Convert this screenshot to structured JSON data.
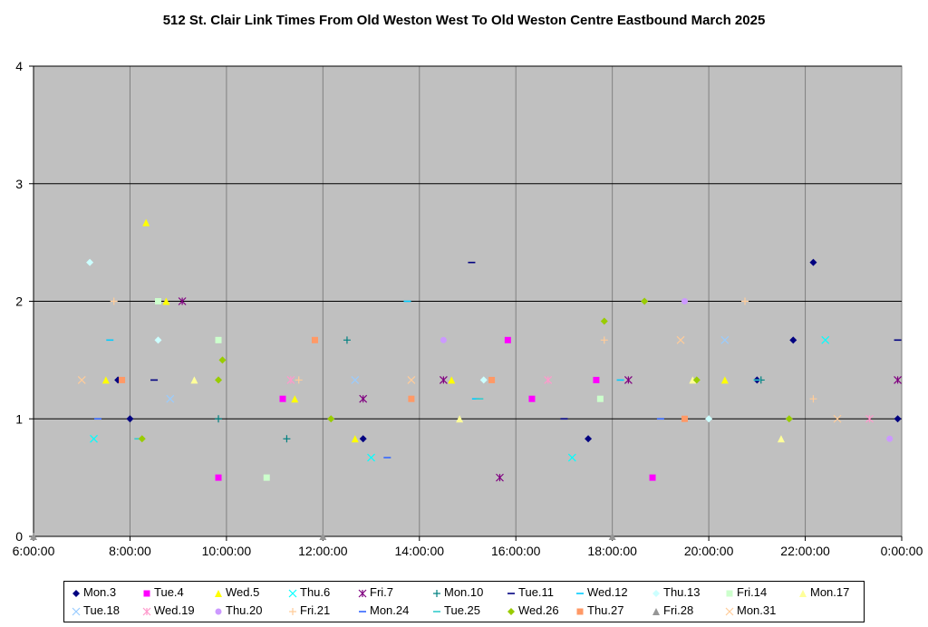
{
  "chart_data": {
    "type": "scatter",
    "title": "512 St. Clair Link Times From Old Weston West To Old Weston Centre Eastbound March 2025",
    "xlabel": "",
    "ylabel": "",
    "xlim": [
      "6:00:00",
      "0:00:00"
    ],
    "ylim": [
      0,
      4
    ],
    "x_ticks": [
      "6:00:00",
      "8:00:00",
      "10:00:00",
      "12:00:00",
      "14:00:00",
      "16:00:00",
      "18:00:00",
      "20:00:00",
      "22:00:00",
      "0:00:00"
    ],
    "y_ticks": [
      "0",
      "1",
      "2",
      "3",
      "4"
    ],
    "grid": true,
    "legend_position": "bottom",
    "plot_background": "#c0c0c0",
    "series": [
      {
        "name": "Mon.3",
        "color": "#000080",
        "marker": "diamond",
        "points": [
          [
            "7:45:00",
            1.33
          ],
          [
            "8:00:00",
            1.0
          ],
          [
            "12:50:00",
            0.83
          ],
          [
            "17:30:00",
            0.83
          ],
          [
            "21:45:00",
            1.67
          ],
          [
            "22:10:00",
            2.33
          ],
          [
            "23:55:00",
            1.0
          ],
          [
            "21:00:00",
            1.33
          ]
        ]
      },
      {
        "name": "Tue.4",
        "color": "#ff00ff",
        "marker": "square",
        "points": [
          [
            "11:10:00",
            1.17
          ],
          [
            "15:50:00",
            1.67
          ],
          [
            "16:20:00",
            1.17
          ],
          [
            "17:40:00",
            1.33
          ],
          [
            "9:50:00",
            0.5
          ],
          [
            "18:50:00",
            0.5
          ]
        ]
      },
      {
        "name": "Wed.5",
        "color": "#ffff00",
        "marker": "triangle",
        "points": [
          [
            "8:20:00",
            2.67
          ],
          [
            "8:45:00",
            2.0
          ],
          [
            "11:25:00",
            1.17
          ],
          [
            "7:30:00",
            1.33
          ],
          [
            "14:40:00",
            1.33
          ],
          [
            "20:20:00",
            1.33
          ],
          [
            "12:40:00",
            0.83
          ]
        ]
      },
      {
        "name": "Thu.6",
        "color": "#00ffff",
        "marker": "x",
        "points": [
          [
            "22:25:00",
            1.67
          ],
          [
            "7:15:00",
            0.83
          ],
          [
            "13:00:00",
            0.67
          ],
          [
            "17:10:00",
            0.67
          ]
        ]
      },
      {
        "name": "Fri.7",
        "color": "#800080",
        "marker": "star",
        "points": [
          [
            "9:05:00",
            2.0
          ],
          [
            "12:50:00",
            1.17
          ],
          [
            "14:30:00",
            1.33
          ],
          [
            "23:55:00",
            1.33
          ],
          [
            "15:40:00",
            0.5
          ],
          [
            "18:20:00",
            1.33
          ]
        ]
      },
      {
        "name": "Mon.10",
        "color": "#008080",
        "marker": "plus",
        "points": [
          [
            "12:30:00",
            1.67
          ],
          [
            "9:50:00",
            1.0
          ],
          [
            "11:15:00",
            0.83
          ],
          [
            "21:05:00",
            1.33
          ]
        ]
      },
      {
        "name": "Tue.11",
        "color": "#000080",
        "marker": "dash",
        "points": [
          [
            "15:05:00",
            2.33
          ],
          [
            "8:30:00",
            1.33
          ],
          [
            "23:55:00",
            1.67
          ],
          [
            "17:00:00",
            1.0
          ]
        ]
      },
      {
        "name": "Wed.12",
        "color": "#00ccff",
        "marker": "dash",
        "points": [
          [
            "7:35:00",
            1.67
          ],
          [
            "13:45:00",
            2.0
          ],
          [
            "15:10:00",
            1.17
          ],
          [
            "18:10:00",
            1.33
          ]
        ]
      },
      {
        "name": "Thu.13",
        "color": "#ccffff",
        "marker": "diamond",
        "points": [
          [
            "7:10:00",
            2.33
          ],
          [
            "8:35:00",
            1.67
          ],
          [
            "15:20:00",
            1.33
          ],
          [
            "20:00:00",
            1.0
          ]
        ]
      },
      {
        "name": "Fri.14",
        "color": "#ccffcc",
        "marker": "square",
        "points": [
          [
            "8:35:00",
            2.0
          ],
          [
            "9:50:00",
            1.67
          ],
          [
            "17:45:00",
            1.17
          ],
          [
            "10:50:00",
            0.5
          ]
        ]
      },
      {
        "name": "Mon.17",
        "color": "#ffff99",
        "marker": "triangle",
        "points": [
          [
            "9:20:00",
            1.33
          ],
          [
            "14:50:00",
            1.0
          ],
          [
            "19:40:00",
            1.33
          ],
          [
            "21:30:00",
            0.83
          ]
        ]
      },
      {
        "name": "Tue.18",
        "color": "#99ccff",
        "marker": "x",
        "points": [
          [
            "8:50:00",
            1.17
          ],
          [
            "12:40:00",
            1.33
          ],
          [
            "20:20:00",
            1.67
          ]
        ]
      },
      {
        "name": "Wed.19",
        "color": "#ff99cc",
        "marker": "star",
        "points": [
          [
            "11:20:00",
            1.33
          ],
          [
            "16:40:00",
            1.33
          ],
          [
            "23:20:00",
            1.0
          ]
        ]
      },
      {
        "name": "Thu.20",
        "color": "#cc99ff",
        "marker": "circle",
        "points": [
          [
            "14:30:00",
            1.67
          ],
          [
            "19:30:00",
            2.0
          ],
          [
            "23:45:00",
            0.83
          ]
        ]
      },
      {
        "name": "Fri.21",
        "color": "#ffcc99",
        "marker": "plus",
        "points": [
          [
            "7:40:00",
            2.0
          ],
          [
            "20:45:00",
            2.0
          ],
          [
            "17:50:00",
            1.67
          ],
          [
            "22:10:00",
            1.17
          ],
          [
            "11:30:00",
            1.33
          ]
        ]
      },
      {
        "name": "Mon.24",
        "color": "#3366ff",
        "marker": "dash",
        "points": [
          [
            "7:20:00",
            1.0
          ],
          [
            "13:20:00",
            0.67
          ],
          [
            "19:00:00",
            1.0
          ]
        ]
      },
      {
        "name": "Tue.25",
        "color": "#33cccc",
        "marker": "dash",
        "points": [
          [
            "8:10:00",
            0.83
          ],
          [
            "15:15:00",
            1.17
          ],
          [
            "21:00:00",
            1.33
          ]
        ]
      },
      {
        "name": "Wed.26",
        "color": "#99cc00",
        "marker": "diamond",
        "points": [
          [
            "9:55:00",
            1.5
          ],
          [
            "17:50:00",
            1.83
          ],
          [
            "18:40:00",
            2.0
          ],
          [
            "9:50:00",
            1.33
          ],
          [
            "19:45:00",
            1.33
          ],
          [
            "8:15:00",
            0.83
          ],
          [
            "12:10:00",
            1.0
          ],
          [
            "21:40:00",
            1.0
          ]
        ]
      },
      {
        "name": "Thu.27",
        "color": "#ff9966",
        "marker": "square",
        "points": [
          [
            "11:50:00",
            1.67
          ],
          [
            "13:50:00",
            1.17
          ],
          [
            "7:50:00",
            1.33
          ],
          [
            "15:30:00",
            1.33
          ],
          [
            "19:30:00",
            1.0
          ]
        ]
      },
      {
        "name": "Fri.28",
        "color": "#969696",
        "marker": "triangle",
        "points": [
          [
            "6:00:00",
            0.0
          ],
          [
            "12:00:00",
            0.0
          ],
          [
            "18:00:00",
            0.0
          ]
        ]
      },
      {
        "name": "Mon.31",
        "color": "#ffcc99",
        "marker": "x",
        "points": [
          [
            "7:00:00",
            1.33
          ],
          [
            "13:50:00",
            1.33
          ],
          [
            "19:25:00",
            1.67
          ],
          [
            "22:40:00",
            1.0
          ]
        ]
      }
    ]
  }
}
